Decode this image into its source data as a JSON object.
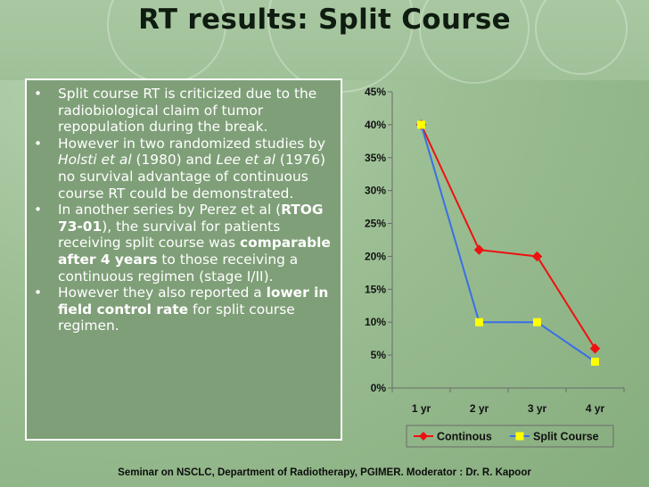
{
  "slide": {
    "title": "RT results: Split Course",
    "footer": "Seminar on NSCLC, Department of Radiotherapy, PGIMER. Moderator : Dr. R. Kapoor"
  },
  "bullets": [
    {
      "parts": [
        {
          "t": "Split course RT is criticized due to the radiobiological claim of tumor repopulation during the break.",
          "s": "n"
        }
      ]
    },
    {
      "parts": [
        {
          "t": "However in two randomized studies by ",
          "s": "n"
        },
        {
          "t": "Holsti et al",
          "s": "i"
        },
        {
          "t": " (1980) and ",
          "s": "n"
        },
        {
          "t": "Lee et al",
          "s": "i"
        },
        {
          "t": " (1976) no survival advantage of continuous course RT could be demonstrated.",
          "s": "n"
        }
      ]
    },
    {
      "parts": [
        {
          "t": "In another series by Perez et al (",
          "s": "n"
        },
        {
          "t": "RTOG 73-01",
          "s": "b"
        },
        {
          "t": "), the survival for patients receiving split course was ",
          "s": "n"
        },
        {
          "t": "comparable after 4 years",
          "s": "b"
        },
        {
          "t": " to those receiving a continuous regimen (stage I/II).",
          "s": "n"
        }
      ]
    },
    {
      "parts": [
        {
          "t": "However they also reported a ",
          "s": "n"
        },
        {
          "t": "lower in field control rate",
          "s": "b"
        },
        {
          "t": " for split course regimen.",
          "s": "n"
        }
      ]
    }
  ],
  "chart_data": {
    "type": "line",
    "categories": [
      "1 yr",
      "2 yr",
      "3 yr",
      "4 yr"
    ],
    "y_ticks": [
      "0%",
      "5%",
      "10%",
      "15%",
      "20%",
      "25%",
      "30%",
      "35%",
      "40%",
      "45%"
    ],
    "ylim": [
      0,
      45
    ],
    "y_unit": "%",
    "legend_position": "bottom",
    "grid": false,
    "series": [
      {
        "name": "Continous",
        "values": [
          40,
          21,
          20,
          6
        ],
        "color": "#ee1111",
        "marker": "diamond",
        "marker_color": "#ee1111"
      },
      {
        "name": "Split Course",
        "values": [
          40,
          10,
          10,
          4
        ],
        "color": "#3a6fe6",
        "marker": "square",
        "marker_color": "#ffff00"
      }
    ]
  }
}
